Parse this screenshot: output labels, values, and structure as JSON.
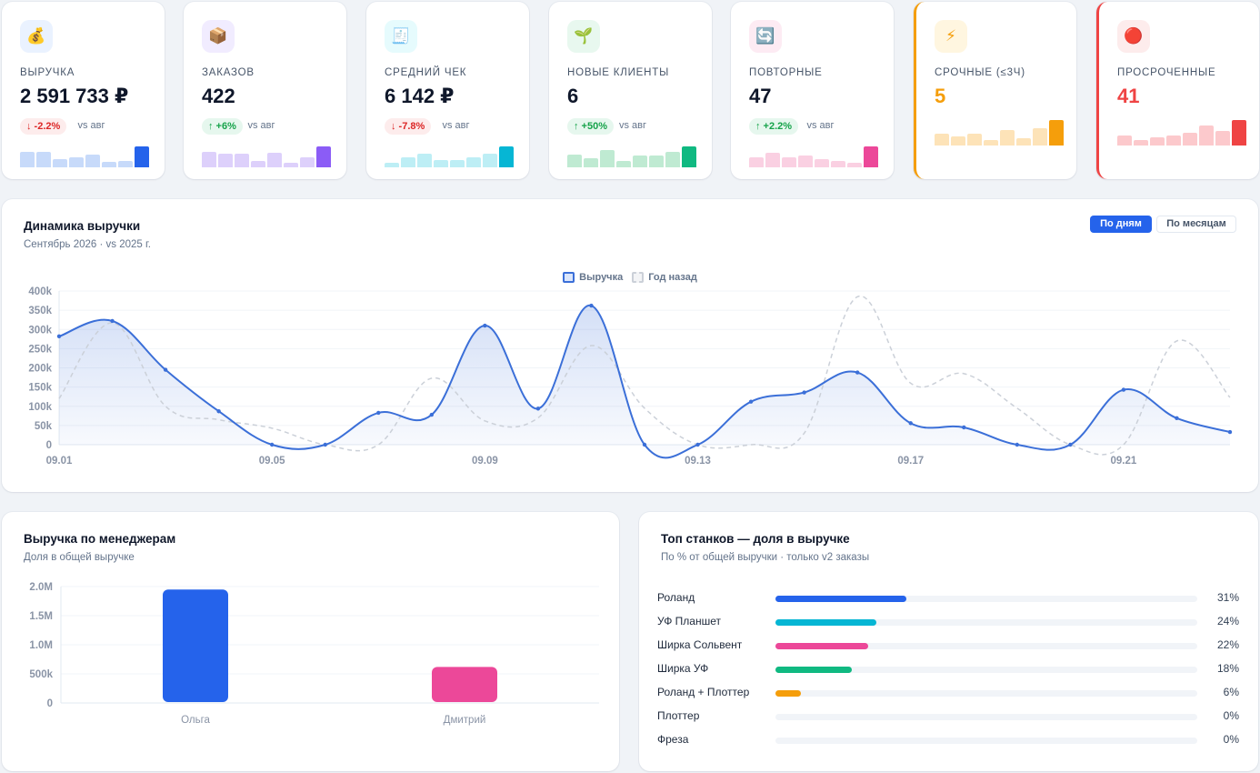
{
  "kpis": [
    {
      "label": "ВЫРУЧКА",
      "value": "2 591 733 ₽",
      "delta": "↓ -2.2%",
      "delta_dir": "down",
      "vs": "vs авг",
      "icon": "money-bag-icon",
      "icon_glyph": "💰",
      "icon_bg": "#eaf2ff",
      "value_color": "#0f172a",
      "spark_color": "#c7dafa",
      "spark_last": "#2563eb",
      "spark": [
        0.55,
        0.55,
        0.3,
        0.35,
        0.45,
        0.2,
        0.22,
        0.78
      ]
    },
    {
      "label": "ЗАКАЗОВ",
      "value": "422",
      "delta": "↑ +6%",
      "delta_dir": "up",
      "vs": "vs авг",
      "icon": "package-icon",
      "icon_glyph": "📦",
      "icon_bg": "#f1ecff",
      "value_color": "#0f172a",
      "spark_color": "#ddd0fb",
      "spark_last": "#8b5cf6",
      "spark": [
        0.55,
        0.5,
        0.5,
        0.22,
        0.52,
        0.18,
        0.35,
        0.78
      ]
    },
    {
      "label": "СРЕДНИЙ ЧЕК",
      "value": "6 142 ₽",
      "delta": "↓ -7.8%",
      "delta_dir": "down",
      "vs": "vs авг",
      "icon": "receipt-icon",
      "icon_glyph": "🧾",
      "icon_bg": "#e6fbfd",
      "value_color": "#0f172a",
      "spark_color": "#bdeef5",
      "spark_last": "#06b6d4",
      "spark": [
        0.18,
        0.38,
        0.5,
        0.25,
        0.25,
        0.35,
        0.5,
        0.78
      ]
    },
    {
      "label": "НОВЫЕ КЛИЕНТЫ",
      "value": "6",
      "delta": "↑ +50%",
      "delta_dir": "up",
      "vs": "vs авг",
      "icon": "sprout-icon",
      "icon_glyph": "🌱",
      "icon_bg": "#e8f8ef",
      "value_color": "#0f172a",
      "spark_color": "#bfead2",
      "spark_last": "#10b981",
      "spark": [
        0.45,
        0.32,
        0.62,
        0.22,
        0.42,
        0.42,
        0.55,
        0.78
      ]
    },
    {
      "label": "ПОВТОРНЫЕ",
      "value": "47",
      "delta": "↑ +2.2%",
      "delta_dir": "up",
      "vs": "vs авг",
      "icon": "repeat-icon",
      "icon_glyph": "🔄",
      "icon_bg": "#fdebf3",
      "value_color": "#0f172a",
      "spark_color": "#fad0e2",
      "spark_last": "#ec4899",
      "spark": [
        0.35,
        0.52,
        0.38,
        0.42,
        0.3,
        0.22,
        0.18,
        0.78
      ]
    },
    {
      "label": "СРОЧНЫЕ (≤3Ч)",
      "value": "5",
      "icon": "lightning-icon",
      "icon_glyph": "⚡",
      "icon_bg": "#fff6e0",
      "value_color": "#f59e0b",
      "spark_color": "#fde3b8",
      "spark_last": "#f59e0b",
      "spark": [
        0.42,
        0.32,
        0.42,
        0.2,
        0.55,
        0.25,
        0.62,
        0.92
      ]
    },
    {
      "label": "ПРОСРОЧЕННЫЕ",
      "value": "41",
      "icon": "red-circle-icon",
      "icon_glyph": "🔴",
      "icon_bg": "#fdecec",
      "value_color": "#ef4444",
      "spark_color": "#fcc9cc",
      "spark_last": "#ef4444",
      "spark": [
        0.35,
        0.2,
        0.3,
        0.38,
        0.45,
        0.72,
        0.52,
        0.92
      ]
    }
  ],
  "revenue": {
    "title": "Динамика выручки",
    "subtitle": "Сентябрь 2026 · vs 2025 г.",
    "toggle_days": "По дням",
    "toggle_months": "По месяцам",
    "legend_current": "Выручка",
    "legend_prev": "Год назад",
    "colors": {
      "current": "#3b6fd8",
      "prev": "#cbd0d8"
    }
  },
  "managers": {
    "title": "Выручка по менеджерам",
    "subtitle": "Доля в общей выручке"
  },
  "machines": {
    "title": "Топ станков — доля в выручке",
    "subtitle": "По % от общей выручки · только v2 заказы",
    "rows": [
      {
        "name": "Роланд",
        "pct": 31,
        "label": "31%",
        "color": "#2563eb"
      },
      {
        "name": "УФ Планшет",
        "pct": 24,
        "label": "24%",
        "color": "#06b6d4"
      },
      {
        "name": "Ширка Сольвент",
        "pct": 22,
        "label": "22%",
        "color": "#ec4899"
      },
      {
        "name": "Ширка УФ",
        "pct": 18,
        "label": "18%",
        "color": "#10b981"
      },
      {
        "name": "Роланд + Плоттер",
        "pct": 6,
        "label": "6%",
        "color": "#f59e0b"
      },
      {
        "name": "Плоттер",
        "pct": 0,
        "label": "0%",
        "color": "#94a3b8"
      },
      {
        "name": "Фреза",
        "pct": 0,
        "label": "0%",
        "color": "#94a3b8"
      }
    ]
  },
  "chart_data": [
    {
      "type": "line",
      "x": [
        "09.01",
        "09.02",
        "09.03",
        "09.04",
        "09.05",
        "09.06",
        "09.07",
        "09.08",
        "09.09",
        "09.10",
        "09.11",
        "09.12",
        "09.13",
        "09.14",
        "09.15",
        "09.16",
        "09.17",
        "09.18",
        "09.19",
        "09.20",
        "09.21",
        "09.22",
        "09.23"
      ],
      "x_tick_labels": [
        "09.01",
        "09.05",
        "09.09",
        "09.13",
        "09.17",
        "09.21"
      ],
      "y_ticks": [
        "0",
        "50k",
        "100k",
        "150k",
        "200k",
        "250k",
        "300k",
        "350k",
        "400k"
      ],
      "ylim": [
        0,
        400000
      ],
      "series": [
        {
          "name": "Выручка",
          "values": [
            282000,
            322000,
            195000,
            87000,
            0,
            0,
            83000,
            78000,
            310000,
            94000,
            362000,
            0,
            0,
            112000,
            136000,
            188000,
            56000,
            45000,
            0,
            0,
            143000,
            69000,
            33000
          ]
        },
        {
          "name": "Год назад",
          "values": [
            120000,
            317000,
            100000,
            65000,
            43000,
            0,
            0,
            173000,
            62000,
            70000,
            258000,
            95000,
            0,
            0,
            30000,
            385000,
            160000,
            185000,
            95000,
            0,
            0,
            270000,
            123000
          ]
        }
      ],
      "grid": true,
      "legend": "top-center"
    },
    {
      "type": "bar",
      "categories": [
        "Ольга",
        "Дмитрий"
      ],
      "values": [
        1950000,
        620000
      ],
      "colors": [
        "#2563eb",
        "#ec4899"
      ],
      "y_ticks": [
        "0",
        "500k",
        "1.0M",
        "1.5M",
        "2.0M"
      ],
      "ylim": [
        0,
        2000000
      ],
      "grid": true
    }
  ]
}
